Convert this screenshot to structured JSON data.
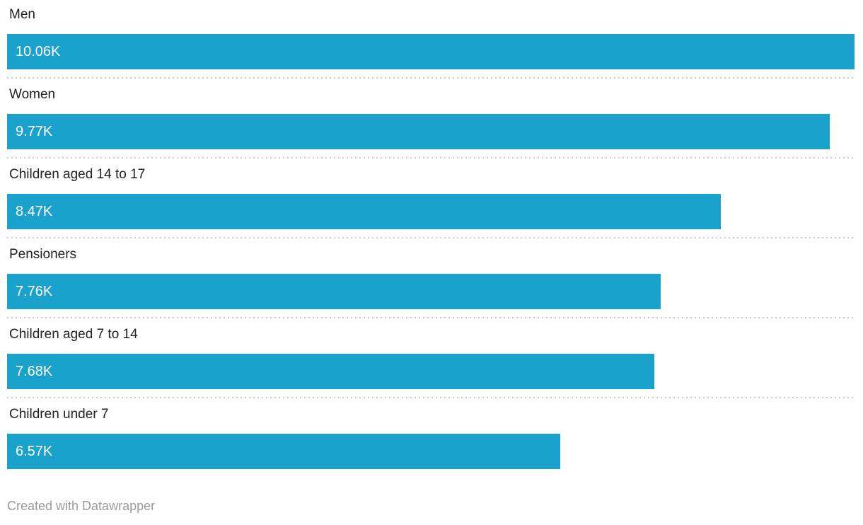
{
  "chart_data": {
    "type": "bar",
    "orientation": "horizontal",
    "categories": [
      "Men",
      "Women",
      "Children aged 14 to 17",
      "Pensioners",
      "Children aged 7 to 14",
      "Children under 7"
    ],
    "values": [
      10060,
      9770,
      8470,
      7760,
      7680,
      6570
    ],
    "value_labels": [
      "10.06K",
      "9.77K",
      "8.47K",
      "7.76K",
      "7.68K",
      "6.57K"
    ],
    "title": "",
    "xlabel": "",
    "ylabel": "",
    "xlim": [
      0,
      10060
    ],
    "max_value": 10060,
    "bar_color": "#1ba2cc",
    "label_color": "#222222",
    "value_text_color": "#ffffff",
    "separator_color": "#cbcbcb",
    "grid": false,
    "legend": false,
    "value_labels_position": "inside-left"
  },
  "footer": {
    "credit": "Created with Datawrapper"
  }
}
